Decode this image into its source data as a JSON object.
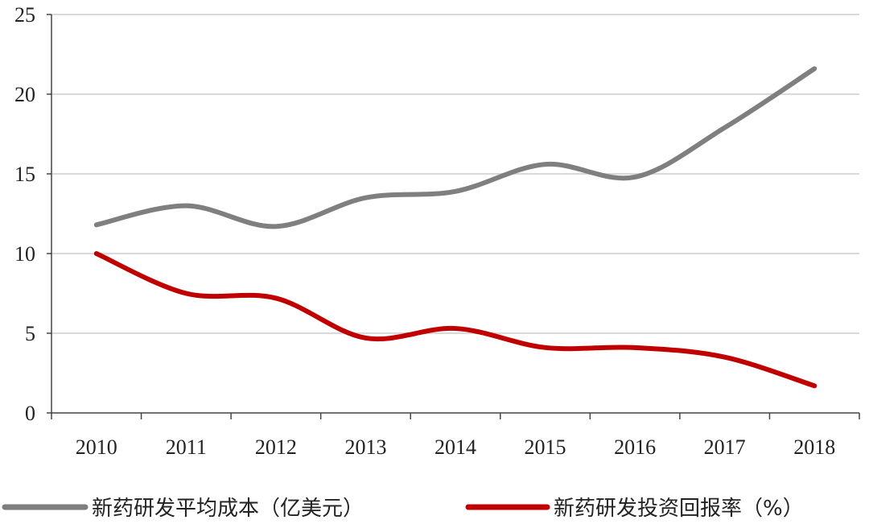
{
  "chart_data": {
    "type": "line",
    "title": "",
    "xlabel": "",
    "ylabel": "",
    "categories": [
      "2010",
      "2011",
      "2012",
      "2013",
      "2014",
      "2015",
      "2016",
      "2017",
      "2018"
    ],
    "ylim": [
      0,
      25
    ],
    "yticks": [
      0,
      5,
      10,
      15,
      20,
      25
    ],
    "grid": true,
    "legend_position": "bottom",
    "series": [
      {
        "name": "新药研发平均成本（亿美元）",
        "color": "#7f7f7f",
        "values": [
          11.8,
          13.0,
          11.7,
          13.5,
          13.9,
          15.6,
          14.8,
          17.9,
          21.6
        ]
      },
      {
        "name": "新药研发投资回报率（%）",
        "color": "#c00000",
        "values": [
          10.0,
          7.5,
          7.2,
          4.7,
          5.3,
          4.1,
          4.1,
          3.5,
          1.7
        ]
      }
    ]
  }
}
